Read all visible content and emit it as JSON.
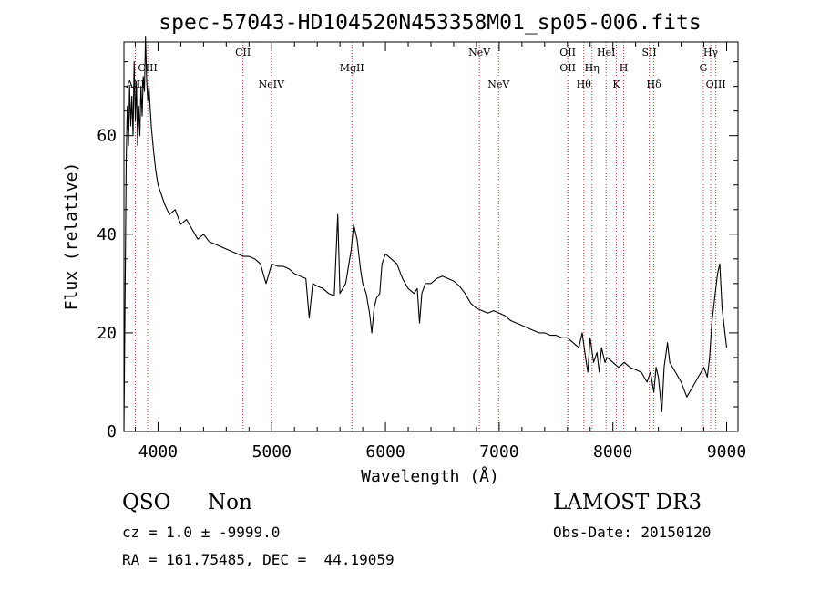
{
  "chart_data": {
    "type": "line",
    "title": "spec-57043-HD104520N453358M01_sp05-006.fits",
    "xlabel": "Wavelength (Å)",
    "ylabel": "Flux (relative)",
    "xlim": [
      3700,
      9100
    ],
    "ylim": [
      0,
      79
    ],
    "xticks": [
      4000,
      5000,
      6000,
      7000,
      8000,
      9000
    ],
    "yticks": [
      0,
      20,
      40,
      60
    ],
    "grid": false,
    "line_color": "#000000",
    "marker_color": "#cc3333",
    "series": [
      {
        "values": [
          [
            3700,
            0
          ],
          [
            3710,
            26
          ],
          [
            3720,
            55
          ],
          [
            3730,
            66
          ],
          [
            3740,
            58
          ],
          [
            3750,
            70
          ],
          [
            3760,
            62
          ],
          [
            3770,
            68
          ],
          [
            3780,
            60
          ],
          [
            3790,
            75
          ],
          [
            3800,
            63
          ],
          [
            3810,
            71
          ],
          [
            3820,
            58
          ],
          [
            3830,
            66
          ],
          [
            3840,
            60
          ],
          [
            3850,
            70
          ],
          [
            3860,
            64
          ],
          [
            3870,
            72
          ],
          [
            3880,
            69
          ],
          [
            3890,
            80
          ],
          [
            3900,
            71
          ],
          [
            3910,
            67
          ],
          [
            3920,
            70
          ],
          [
            3930,
            66
          ],
          [
            3940,
            62
          ],
          [
            3960,
            57
          ],
          [
            3980,
            53
          ],
          [
            4000,
            50
          ],
          [
            4030,
            48
          ],
          [
            4060,
            46
          ],
          [
            4100,
            44
          ],
          [
            4150,
            45
          ],
          [
            4200,
            42
          ],
          [
            4250,
            43
          ],
          [
            4300,
            41
          ],
          [
            4350,
            39
          ],
          [
            4400,
            40
          ],
          [
            4450,
            38.5
          ],
          [
            4500,
            38
          ],
          [
            4550,
            37.5
          ],
          [
            4600,
            37
          ],
          [
            4650,
            36.5
          ],
          [
            4700,
            36
          ],
          [
            4750,
            35.5
          ],
          [
            4800,
            35.5
          ],
          [
            4850,
            35
          ],
          [
            4900,
            34
          ],
          [
            4950,
            30
          ],
          [
            5000,
            34
          ],
          [
            5050,
            33.5
          ],
          [
            5100,
            33.5
          ],
          [
            5150,
            33
          ],
          [
            5200,
            32
          ],
          [
            5250,
            31.5
          ],
          [
            5300,
            31
          ],
          [
            5330,
            23
          ],
          [
            5360,
            30
          ],
          [
            5400,
            29.5
          ],
          [
            5450,
            29
          ],
          [
            5500,
            28
          ],
          [
            5550,
            27.5
          ],
          [
            5580,
            44
          ],
          [
            5600,
            28
          ],
          [
            5650,
            30
          ],
          [
            5700,
            37
          ],
          [
            5720,
            42
          ],
          [
            5750,
            39
          ],
          [
            5780,
            33
          ],
          [
            5800,
            30
          ],
          [
            5830,
            28
          ],
          [
            5860,
            24
          ],
          [
            5880,
            20
          ],
          [
            5900,
            25
          ],
          [
            5920,
            27
          ],
          [
            5950,
            28
          ],
          [
            5970,
            34
          ],
          [
            6000,
            36
          ],
          [
            6050,
            35
          ],
          [
            6100,
            34
          ],
          [
            6150,
            31
          ],
          [
            6200,
            29
          ],
          [
            6250,
            28
          ],
          [
            6280,
            29
          ],
          [
            6300,
            22
          ],
          [
            6320,
            28
          ],
          [
            6350,
            30
          ],
          [
            6400,
            30
          ],
          [
            6450,
            31
          ],
          [
            6500,
            31.5
          ],
          [
            6550,
            31
          ],
          [
            6600,
            30.5
          ],
          [
            6650,
            29.5
          ],
          [
            6700,
            28
          ],
          [
            6750,
            26
          ],
          [
            6800,
            25
          ],
          [
            6850,
            24.5
          ],
          [
            6900,
            24
          ],
          [
            6950,
            24.5
          ],
          [
            7000,
            24
          ],
          [
            7050,
            23.5
          ],
          [
            7100,
            22.5
          ],
          [
            7150,
            22
          ],
          [
            7200,
            21.5
          ],
          [
            7250,
            21
          ],
          [
            7300,
            20.5
          ],
          [
            7350,
            20
          ],
          [
            7400,
            20
          ],
          [
            7450,
            19.5
          ],
          [
            7500,
            19.5
          ],
          [
            7550,
            19
          ],
          [
            7600,
            19
          ],
          [
            7650,
            18
          ],
          [
            7700,
            17
          ],
          [
            7730,
            20
          ],
          [
            7760,
            15
          ],
          [
            7780,
            12
          ],
          [
            7800,
            19
          ],
          [
            7830,
            14
          ],
          [
            7860,
            16
          ],
          [
            7880,
            12
          ],
          [
            7900,
            17
          ],
          [
            7930,
            14
          ],
          [
            7950,
            15
          ],
          [
            8000,
            14
          ],
          [
            8050,
            13
          ],
          [
            8100,
            14
          ],
          [
            8150,
            13
          ],
          [
            8200,
            12.5
          ],
          [
            8250,
            12
          ],
          [
            8300,
            10
          ],
          [
            8330,
            12
          ],
          [
            8360,
            8
          ],
          [
            8380,
            13
          ],
          [
            8400,
            11
          ],
          [
            8430,
            4
          ],
          [
            8450,
            13
          ],
          [
            8480,
            18
          ],
          [
            8500,
            14
          ],
          [
            8550,
            12
          ],
          [
            8600,
            10
          ],
          [
            8650,
            7
          ],
          [
            8700,
            9
          ],
          [
            8750,
            11
          ],
          [
            8800,
            13
          ],
          [
            8830,
            11
          ],
          [
            8850,
            15
          ],
          [
            8870,
            22
          ],
          [
            8900,
            28
          ],
          [
            8920,
            32
          ],
          [
            8940,
            34
          ],
          [
            8960,
            25
          ],
          [
            8980,
            21
          ],
          [
            9000,
            17
          ]
        ]
      }
    ],
    "lines": [
      {
        "label": "AlII",
        "x": 3800,
        "row": 3
      },
      {
        "label": "CIII",
        "x": 3909,
        "row": 2
      },
      {
        "label": "CII",
        "x": 4747,
        "row": 1
      },
      {
        "label": "NeIV",
        "x": 4997,
        "row": 3
      },
      {
        "label": "MgII",
        "x": 5705,
        "row": 2
      },
      {
        "label": "NeV",
        "x": 6826,
        "row": 1
      },
      {
        "label": "NeV",
        "x": 6995,
        "row": 3
      },
      {
        "label": "OII",
        "x": 7603,
        "row": 1
      },
      {
        "label": "OII",
        "x": 7603,
        "row": 2
      },
      {
        "label": "Hθ",
        "x": 7744,
        "row": 3
      },
      {
        "label": "Hη",
        "x": 7816,
        "row": 2
      },
      {
        "label": "HeI",
        "x": 7940,
        "row": 1
      },
      {
        "label": "K",
        "x": 8030,
        "row": 3
      },
      {
        "label": "H",
        "x": 8095,
        "row": 2
      },
      {
        "label": "SII",
        "x": 8320,
        "row": 1
      },
      {
        "label": "Hδ",
        "x": 8360,
        "row": 3
      },
      {
        "label": "G",
        "x": 8795,
        "row": 2
      },
      {
        "label": "Hγ",
        "x": 8860,
        "row": 1
      },
      {
        "label": "OIII",
        "x": 8905,
        "row": 3
      }
    ]
  },
  "info": {
    "class": "QSO",
    "subclass": "Non",
    "survey": "LAMOST DR3",
    "redshift": "cz = 1.0 ± -9999.0",
    "obs_date": "Obs-Date: 20150120",
    "coords": "RA = 161.75485, DEC =  44.19059"
  }
}
